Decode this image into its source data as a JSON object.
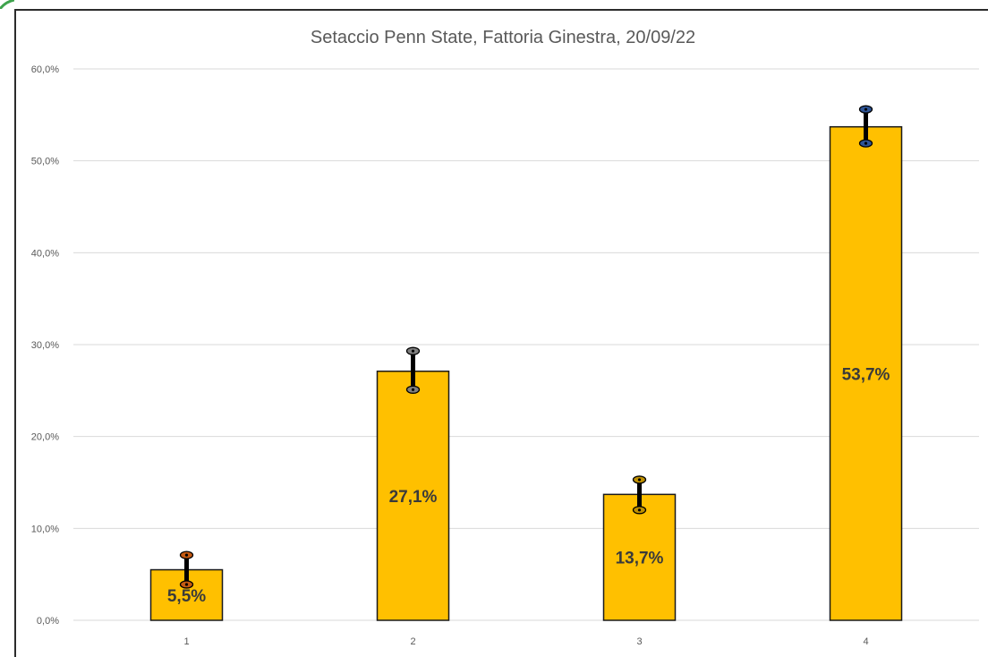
{
  "chart_data": {
    "type": "bar",
    "title": "Setaccio Penn State, Fattoria Ginestra, 20/09/22",
    "categories": [
      "1",
      "2",
      "3",
      "4"
    ],
    "values": [
      5.5,
      27.1,
      13.7,
      53.7
    ],
    "data_labels": [
      "5,5%",
      "27,1%",
      "13,7%",
      "53,7%"
    ],
    "error_bars": [
      {
        "low": 3.9,
        "high": 7.1
      },
      {
        "low": 25.1,
        "high": 29.3
      },
      {
        "low": 12.0,
        "high": 15.3
      },
      {
        "low": 51.9,
        "high": 55.6
      }
    ],
    "y_ticks": [
      "0,0%",
      "10,0%",
      "20,0%",
      "30,0%",
      "40,0%",
      "50,0%",
      "60,0%"
    ],
    "ylim": [
      0,
      60
    ],
    "xlabel": "",
    "ylabel": "",
    "grid": true,
    "colors": {
      "bar_fill": "#FFC000",
      "bar_stroke": "#1a1a1a",
      "grid": "#d9d9d9",
      "error_bar": "#000000",
      "marker_colors": [
        "#c55a11",
        "#7f7f7f",
        "#bf9000",
        "#2f5597"
      ]
    }
  }
}
